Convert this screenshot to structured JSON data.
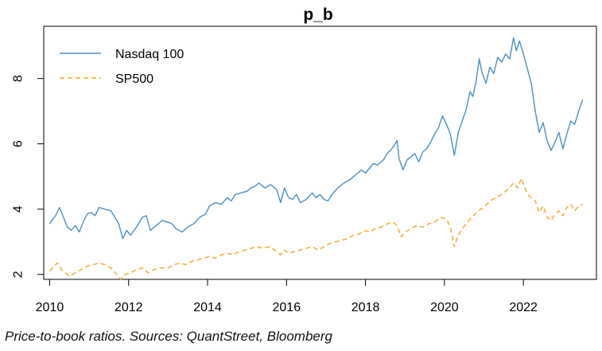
{
  "chart_data": {
    "type": "line",
    "title": "p_b",
    "caption": "Price-to-book ratios. Sources: QuantStreet, Bloomberg",
    "xlabel": "",
    "ylabel": "",
    "xlim": [
      2009.85,
      2023.85
    ],
    "ylim": [
      1.85,
      9.6
    ],
    "x_ticks": [
      2010,
      2012,
      2014,
      2016,
      2018,
      2020,
      2022
    ],
    "y_ticks": [
      2,
      4,
      6,
      8
    ],
    "legend_position": "top-left",
    "grid": false,
    "series": [
      {
        "name": "Nasdaq 100",
        "color": "#4a90c8",
        "dash": "solid",
        "points": [
          [
            2010.0,
            3.55
          ],
          [
            2010.15,
            3.8
          ],
          [
            2010.25,
            4.05
          ],
          [
            2010.35,
            3.75
          ],
          [
            2010.45,
            3.45
          ],
          [
            2010.55,
            3.35
          ],
          [
            2010.65,
            3.5
          ],
          [
            2010.75,
            3.3
          ],
          [
            2010.85,
            3.6
          ],
          [
            2010.95,
            3.85
          ],
          [
            2011.05,
            3.9
          ],
          [
            2011.15,
            3.8
          ],
          [
            2011.25,
            4.05
          ],
          [
            2011.4,
            4.0
          ],
          [
            2011.55,
            3.95
          ],
          [
            2011.65,
            3.75
          ],
          [
            2011.75,
            3.55
          ],
          [
            2011.85,
            3.1
          ],
          [
            2011.95,
            3.35
          ],
          [
            2012.05,
            3.2
          ],
          [
            2012.2,
            3.45
          ],
          [
            2012.35,
            3.75
          ],
          [
            2012.45,
            3.8
          ],
          [
            2012.55,
            3.35
          ],
          [
            2012.7,
            3.5
          ],
          [
            2012.85,
            3.65
          ],
          [
            2013.0,
            3.6
          ],
          [
            2013.1,
            3.55
          ],
          [
            2013.2,
            3.4
          ],
          [
            2013.35,
            3.3
          ],
          [
            2013.5,
            3.45
          ],
          [
            2013.65,
            3.55
          ],
          [
            2013.8,
            3.75
          ],
          [
            2013.95,
            3.85
          ],
          [
            2014.05,
            4.1
          ],
          [
            2014.2,
            4.2
          ],
          [
            2014.35,
            4.15
          ],
          [
            2014.5,
            4.35
          ],
          [
            2014.6,
            4.25
          ],
          [
            2014.7,
            4.45
          ],
          [
            2014.85,
            4.5
          ],
          [
            2015.0,
            4.55
          ],
          [
            2015.1,
            4.65
          ],
          [
            2015.2,
            4.7
          ],
          [
            2015.3,
            4.8
          ],
          [
            2015.45,
            4.65
          ],
          [
            2015.6,
            4.75
          ],
          [
            2015.75,
            4.6
          ],
          [
            2015.85,
            4.2
          ],
          [
            2015.95,
            4.65
          ],
          [
            2016.05,
            4.35
          ],
          [
            2016.15,
            4.3
          ],
          [
            2016.25,
            4.45
          ],
          [
            2016.35,
            4.2
          ],
          [
            2016.5,
            4.3
          ],
          [
            2016.65,
            4.5
          ],
          [
            2016.75,
            4.35
          ],
          [
            2016.85,
            4.45
          ],
          [
            2016.95,
            4.3
          ],
          [
            2017.05,
            4.25
          ],
          [
            2017.15,
            4.45
          ],
          [
            2017.3,
            4.65
          ],
          [
            2017.45,
            4.8
          ],
          [
            2017.6,
            4.9
          ],
          [
            2017.75,
            5.05
          ],
          [
            2017.9,
            5.2
          ],
          [
            2018.0,
            5.1
          ],
          [
            2018.1,
            5.25
          ],
          [
            2018.2,
            5.4
          ],
          [
            2018.3,
            5.35
          ],
          [
            2018.45,
            5.5
          ],
          [
            2018.55,
            5.7
          ],
          [
            2018.7,
            5.9
          ],
          [
            2018.8,
            6.1
          ],
          [
            2018.85,
            5.55
          ],
          [
            2018.95,
            5.2
          ],
          [
            2019.05,
            5.5
          ],
          [
            2019.15,
            5.6
          ],
          [
            2019.25,
            5.7
          ],
          [
            2019.35,
            5.45
          ],
          [
            2019.45,
            5.75
          ],
          [
            2019.55,
            5.85
          ],
          [
            2019.65,
            6.05
          ],
          [
            2019.75,
            6.3
          ],
          [
            2019.85,
            6.5
          ],
          [
            2019.95,
            6.85
          ],
          [
            2020.05,
            6.6
          ],
          [
            2020.15,
            6.3
          ],
          [
            2020.25,
            5.65
          ],
          [
            2020.35,
            6.35
          ],
          [
            2020.45,
            6.7
          ],
          [
            2020.55,
            7.05
          ],
          [
            2020.65,
            7.6
          ],
          [
            2020.72,
            7.45
          ],
          [
            2020.8,
            7.9
          ],
          [
            2020.88,
            8.6
          ],
          [
            2020.95,
            8.2
          ],
          [
            2021.05,
            7.85
          ],
          [
            2021.15,
            8.35
          ],
          [
            2021.25,
            8.15
          ],
          [
            2021.35,
            8.65
          ],
          [
            2021.45,
            8.5
          ],
          [
            2021.55,
            8.75
          ],
          [
            2021.65,
            8.6
          ],
          [
            2021.75,
            9.25
          ],
          [
            2021.82,
            8.85
          ],
          [
            2021.9,
            9.15
          ],
          [
            2022.0,
            8.75
          ],
          [
            2022.1,
            8.3
          ],
          [
            2022.2,
            7.85
          ],
          [
            2022.3,
            7.0
          ],
          [
            2022.4,
            6.35
          ],
          [
            2022.5,
            6.65
          ],
          [
            2022.6,
            6.1
          ],
          [
            2022.7,
            5.8
          ],
          [
            2022.8,
            6.05
          ],
          [
            2022.9,
            6.35
          ],
          [
            2023.0,
            5.85
          ],
          [
            2023.1,
            6.3
          ],
          [
            2023.2,
            6.7
          ],
          [
            2023.3,
            6.6
          ],
          [
            2023.4,
            7.0
          ],
          [
            2023.5,
            7.35
          ]
        ]
      },
      {
        "name": "SP500",
        "color": "#f5a623",
        "dash": "dashed",
        "points": [
          [
            2010.0,
            2.1
          ],
          [
            2010.1,
            2.25
          ],
          [
            2010.2,
            2.35
          ],
          [
            2010.3,
            2.15
          ],
          [
            2010.4,
            2.05
          ],
          [
            2010.5,
            1.95
          ],
          [
            2010.65,
            2.05
          ],
          [
            2010.8,
            2.15
          ],
          [
            2010.95,
            2.25
          ],
          [
            2011.1,
            2.3
          ],
          [
            2011.25,
            2.35
          ],
          [
            2011.4,
            2.3
          ],
          [
            2011.55,
            2.2
          ],
          [
            2011.7,
            2.0
          ],
          [
            2011.8,
            1.85
          ],
          [
            2011.9,
            2.0
          ],
          [
            2012.05,
            2.05
          ],
          [
            2012.2,
            2.15
          ],
          [
            2012.35,
            2.2
          ],
          [
            2012.5,
            2.05
          ],
          [
            2012.65,
            2.15
          ],
          [
            2012.8,
            2.2
          ],
          [
            2013.0,
            2.2
          ],
          [
            2013.15,
            2.3
          ],
          [
            2013.3,
            2.35
          ],
          [
            2013.45,
            2.3
          ],
          [
            2013.6,
            2.4
          ],
          [
            2013.75,
            2.45
          ],
          [
            2013.9,
            2.5
          ],
          [
            2014.05,
            2.55
          ],
          [
            2014.2,
            2.5
          ],
          [
            2014.35,
            2.6
          ],
          [
            2014.5,
            2.65
          ],
          [
            2014.65,
            2.6
          ],
          [
            2014.8,
            2.7
          ],
          [
            2014.95,
            2.75
          ],
          [
            2015.1,
            2.8
          ],
          [
            2015.25,
            2.85
          ],
          [
            2015.4,
            2.8
          ],
          [
            2015.55,
            2.85
          ],
          [
            2015.7,
            2.75
          ],
          [
            2015.85,
            2.6
          ],
          [
            2015.95,
            2.75
          ],
          [
            2016.05,
            2.65
          ],
          [
            2016.2,
            2.7
          ],
          [
            2016.35,
            2.75
          ],
          [
            2016.5,
            2.8
          ],
          [
            2016.65,
            2.85
          ],
          [
            2016.8,
            2.75
          ],
          [
            2016.95,
            2.85
          ],
          [
            2017.1,
            2.95
          ],
          [
            2017.25,
            3.0
          ],
          [
            2017.4,
            3.05
          ],
          [
            2017.55,
            3.1
          ],
          [
            2017.7,
            3.2
          ],
          [
            2017.85,
            3.25
          ],
          [
            2018.0,
            3.35
          ],
          [
            2018.1,
            3.3
          ],
          [
            2018.25,
            3.4
          ],
          [
            2018.4,
            3.45
          ],
          [
            2018.55,
            3.55
          ],
          [
            2018.7,
            3.6
          ],
          [
            2018.8,
            3.5
          ],
          [
            2018.9,
            3.15
          ],
          [
            2019.0,
            3.3
          ],
          [
            2019.15,
            3.4
          ],
          [
            2019.3,
            3.5
          ],
          [
            2019.45,
            3.45
          ],
          [
            2019.6,
            3.55
          ],
          [
            2019.75,
            3.6
          ],
          [
            2019.9,
            3.75
          ],
          [
            2020.05,
            3.7
          ],
          [
            2020.15,
            3.45
          ],
          [
            2020.25,
            2.85
          ],
          [
            2020.35,
            3.2
          ],
          [
            2020.45,
            3.4
          ],
          [
            2020.55,
            3.55
          ],
          [
            2020.7,
            3.75
          ],
          [
            2020.85,
            3.95
          ],
          [
            2021.0,
            4.05
          ],
          [
            2021.15,
            4.25
          ],
          [
            2021.3,
            4.35
          ],
          [
            2021.45,
            4.45
          ],
          [
            2021.6,
            4.6
          ],
          [
            2021.75,
            4.8
          ],
          [
            2021.85,
            4.65
          ],
          [
            2021.95,
            4.95
          ],
          [
            2022.05,
            4.6
          ],
          [
            2022.15,
            4.4
          ],
          [
            2022.3,
            4.25
          ],
          [
            2022.4,
            3.9
          ],
          [
            2022.5,
            4.1
          ],
          [
            2022.6,
            3.75
          ],
          [
            2022.7,
            3.65
          ],
          [
            2022.8,
            3.85
          ],
          [
            2022.9,
            3.95
          ],
          [
            2023.0,
            3.8
          ],
          [
            2023.1,
            4.05
          ],
          [
            2023.2,
            4.15
          ],
          [
            2023.3,
            3.95
          ],
          [
            2023.4,
            4.1
          ],
          [
            2023.5,
            4.15
          ]
        ]
      }
    ]
  }
}
